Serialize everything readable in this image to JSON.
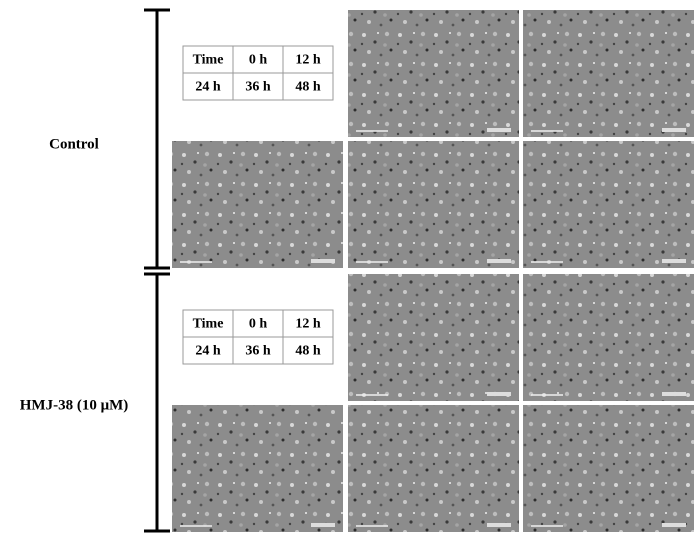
{
  "groups": [
    {
      "label": "Control",
      "table": {
        "rows": [
          [
            "Time",
            "0 h",
            "12 h"
          ],
          [
            "24 h",
            "36 h",
            "48 h"
          ]
        ]
      }
    },
    {
      "label": "HMJ-38 (10 μM)",
      "table": {
        "rows": [
          [
            "Time",
            "0 h",
            "12 h"
          ],
          [
            "24 h",
            "36 h",
            "48 h"
          ]
        ]
      }
    }
  ]
}
